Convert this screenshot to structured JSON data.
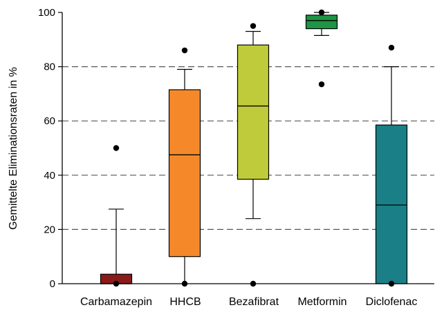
{
  "chart_data": {
    "type": "boxplot",
    "title": "",
    "xlabel": "",
    "ylabel": "Gemittelte Eliminationsraten in %",
    "ylim": [
      0,
      100
    ],
    "yticks": [
      0,
      20,
      40,
      60,
      80,
      100
    ],
    "grid": "horizontal-dashed",
    "legend": "none",
    "categories": [
      "Carbamazepin",
      "HHCB",
      "Bezafibrat",
      "Metformin",
      "Diclofenac"
    ],
    "boxes": [
      {
        "category": "Carbamazepin",
        "color": "#8B1A1A",
        "whisker_low": 0,
        "q1": 0,
        "median": 0,
        "q3": 3.5,
        "whisker_high": 27.5,
        "outliers": [
          50,
          0
        ]
      },
      {
        "category": "HHCB",
        "color": "#F5892A",
        "whisker_low": 0,
        "q1": 10,
        "median": 47.5,
        "q3": 71.5,
        "whisker_high": 79,
        "outliers": [
          86,
          0
        ]
      },
      {
        "category": "Bezafibrat",
        "color": "#BFCB3A",
        "whisker_low": 24,
        "q1": 38.5,
        "median": 65.5,
        "q3": 88,
        "whisker_high": 93,
        "outliers": [
          95,
          0
        ]
      },
      {
        "category": "Metformin",
        "color": "#1E9444",
        "whisker_low": 91.5,
        "q1": 94,
        "median": 97,
        "q3": 99,
        "whisker_high": 100,
        "outliers": [
          100,
          73.5
        ]
      },
      {
        "category": "Diclofenac",
        "color": "#1A7F86",
        "whisker_low": 0,
        "q1": 0,
        "median": 29,
        "q3": 58.5,
        "whisker_high": 80,
        "outliers": [
          87,
          0
        ]
      }
    ]
  }
}
